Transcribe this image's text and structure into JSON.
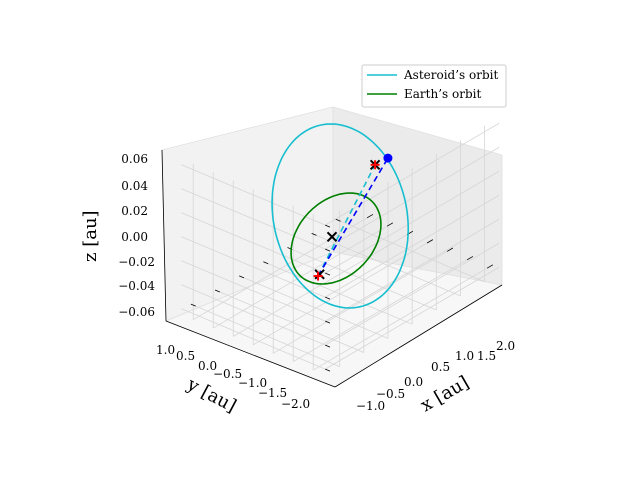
{
  "chart_data": {
    "type": "line-3d",
    "title": "",
    "xlabel": "x [au]",
    "ylabel": "y [au]",
    "zlabel": "z [au]",
    "x_ticks": [
      "−1.0",
      "−0.5",
      "0.0",
      "0.5",
      "1.0",
      "1.5",
      "2.0"
    ],
    "y_ticks": [
      "1.0",
      "0.5",
      "0.0",
      "−0.5",
      "−1.0",
      "−1.5",
      "−2.0"
    ],
    "z_ticks": [
      "0.06",
      "0.04",
      "0.02",
      "0.00",
      "−0.02",
      "−0.04",
      "−0.06"
    ],
    "xlim": [
      -1.3,
      2.3
    ],
    "ylim": [
      -2.3,
      1.3
    ],
    "zlim": [
      -0.065,
      0.065
    ],
    "grid": true,
    "legend_position": "top-right",
    "series": [
      {
        "name": "Asteroid’s orbit",
        "color": "#17becf",
        "style": "solid",
        "center": [
          0.5,
          -0.5,
          0.0
        ],
        "semi_axis_u": [
          1.9,
          -1.9,
          0.0
        ],
        "semi_axis_v": [
          -0.75,
          -0.75,
          0.035
        ],
        "samples": 120
      },
      {
        "name": "Earth’s orbit",
        "color": "#008000",
        "style": "solid",
        "center": [
          0.0,
          0.0,
          0.0
        ],
        "semi_axis_u": [
          1.0,
          -1.0,
          0.0
        ],
        "semi_axis_v": [
          -0.5,
          -0.5,
          0.0
        ],
        "samples": 120
      }
    ],
    "trajectory": {
      "points": [
        [
          -1.2,
          1.0,
          0.011
        ],
        [
          2.4,
          -1.6,
          -0.012
        ]
      ],
      "color": "#0000ff",
      "style": "dashed"
    },
    "trajectory_secondary": {
      "points": [
        [
          -1.2,
          1.0,
          0.011
        ],
        [
          2.3,
          -1.8,
          -0.018
        ]
      ],
      "color": "#17becf",
      "style": "dashed"
    },
    "markers": [
      {
        "type": "x",
        "color": "#000000",
        "point": [
          -1.25,
          1.1,
          0.015
        ]
      },
      {
        "type": "x",
        "color": "#000000",
        "point": [
          0.0,
          -0.1,
          0.0
        ]
      },
      {
        "type": "x",
        "color": "#000000",
        "point": [
          2.3,
          -1.8,
          -0.018
        ]
      },
      {
        "type": "plus",
        "color": "#ff0000",
        "point": [
          -1.2,
          1.0,
          0.011
        ]
      },
      {
        "type": "plus",
        "color": "#ff0000",
        "point": [
          2.3,
          -1.8,
          -0.018
        ]
      },
      {
        "type": "dot",
        "color": "#0000ff",
        "point": [
          2.4,
          -1.6,
          -0.012
        ]
      }
    ]
  }
}
